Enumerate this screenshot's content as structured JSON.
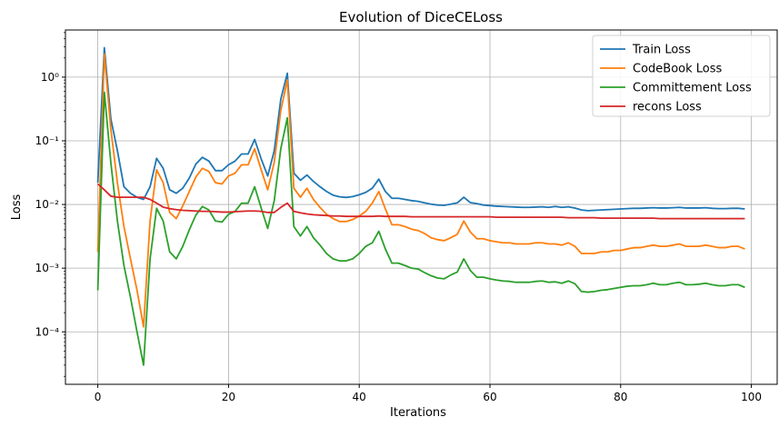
{
  "chart_data": {
    "type": "line",
    "title": "Evolution of DiceCELoss",
    "xlabel": "Iterations",
    "ylabel": "Loss",
    "yscale": "log",
    "xlim": [
      -4.95,
      103.95
    ],
    "ylim": [
      1.5e-05,
      5.5
    ],
    "x_ticks": [
      0,
      20,
      40,
      60,
      80,
      100
    ],
    "x_tick_labels": [
      "0",
      "20",
      "40",
      "60",
      "80",
      "100"
    ],
    "y_ticks": [
      0.0001,
      0.001,
      0.01,
      0.1,
      1
    ],
    "y_tick_labels": [
      "10⁻⁴",
      "10⁻³",
      "10⁻²",
      "10⁻¹",
      "10⁰"
    ],
    "grid": true,
    "legend_position": "top-right",
    "x": [
      0,
      1,
      2,
      3,
      4,
      5,
      6,
      7,
      8,
      9,
      10,
      11,
      12,
      13,
      14,
      15,
      16,
      17,
      18,
      19,
      20,
      21,
      22,
      23,
      24,
      25,
      26,
      27,
      28,
      29,
      30,
      31,
      32,
      33,
      34,
      35,
      36,
      37,
      38,
      39,
      40,
      41,
      42,
      43,
      44,
      45,
      46,
      47,
      48,
      49,
      50,
      51,
      52,
      53,
      54,
      55,
      56,
      57,
      58,
      59,
      60,
      61,
      62,
      63,
      64,
      65,
      66,
      67,
      68,
      69,
      70,
      71,
      72,
      73,
      74,
      75,
      76,
      77,
      78,
      79,
      80,
      81,
      82,
      83,
      84,
      85,
      86,
      87,
      88,
      89,
      90,
      91,
      92,
      93,
      94,
      95,
      96,
      97,
      98,
      99
    ],
    "series": [
      {
        "name": "Train Loss",
        "color": "#1f77b4",
        "values": [
          0.022,
          2.9,
          0.22,
          0.07,
          0.019,
          0.015,
          0.013,
          0.012,
          0.019,
          0.053,
          0.037,
          0.017,
          0.015,
          0.018,
          0.026,
          0.043,
          0.055,
          0.048,
          0.034,
          0.034,
          0.042,
          0.048,
          0.062,
          0.062,
          0.105,
          0.052,
          0.028,
          0.07,
          0.45,
          1.15,
          0.031,
          0.024,
          0.029,
          0.023,
          0.019,
          0.016,
          0.014,
          0.0132,
          0.0129,
          0.0133,
          0.0142,
          0.0155,
          0.018,
          0.025,
          0.016,
          0.0125,
          0.0125,
          0.012,
          0.0115,
          0.0112,
          0.0106,
          0.0101,
          0.0098,
          0.0097,
          0.0101,
          0.0106,
          0.013,
          0.0107,
          0.0103,
          0.0098,
          0.0096,
          0.0094,
          0.0093,
          0.0092,
          0.0091,
          0.009,
          0.009,
          0.0091,
          0.0092,
          0.009,
          0.0093,
          0.009,
          0.0092,
          0.0088,
          0.0082,
          0.008,
          0.0081,
          0.0082,
          0.0083,
          0.0084,
          0.0085,
          0.0086,
          0.0087,
          0.0087,
          0.0088,
          0.0089,
          0.0088,
          0.0088,
          0.0089,
          0.009,
          0.0088,
          0.0088,
          0.0088,
          0.0089,
          0.0087,
          0.0086,
          0.0086,
          0.0087,
          0.0087,
          0.0085
        ]
      },
      {
        "name": "CodeBook Loss",
        "color": "#ff7f0e",
        "values": [
          0.0018,
          2.3,
          0.15,
          0.022,
          0.0045,
          0.0014,
          0.00045,
          0.00012,
          0.0055,
          0.035,
          0.022,
          0.0075,
          0.006,
          0.0095,
          0.016,
          0.027,
          0.037,
          0.033,
          0.022,
          0.021,
          0.028,
          0.031,
          0.042,
          0.042,
          0.075,
          0.035,
          0.017,
          0.046,
          0.3,
          0.9,
          0.018,
          0.013,
          0.018,
          0.012,
          0.009,
          0.007,
          0.006,
          0.0054,
          0.0054,
          0.0058,
          0.0066,
          0.0078,
          0.0105,
          0.016,
          0.0085,
          0.0048,
          0.0048,
          0.0045,
          0.0041,
          0.0039,
          0.0035,
          0.003,
          0.0028,
          0.0027,
          0.003,
          0.0034,
          0.0055,
          0.0037,
          0.0029,
          0.0029,
          0.0027,
          0.0026,
          0.0025,
          0.0025,
          0.0024,
          0.0024,
          0.0024,
          0.0025,
          0.0025,
          0.0024,
          0.0024,
          0.0023,
          0.0025,
          0.0022,
          0.0017,
          0.0017,
          0.0017,
          0.0018,
          0.0018,
          0.0019,
          0.0019,
          0.002,
          0.0021,
          0.0021,
          0.0022,
          0.0023,
          0.0022,
          0.0022,
          0.0023,
          0.0024,
          0.0022,
          0.0022,
          0.0022,
          0.0023,
          0.0022,
          0.0021,
          0.0021,
          0.0022,
          0.0022,
          0.002
        ]
      },
      {
        "name": "Committement Loss",
        "color": "#2ca02c",
        "values": [
          0.00045,
          0.58,
          0.045,
          0.0055,
          0.0011,
          0.00035,
          0.0001,
          3e-05,
          0.0014,
          0.0087,
          0.0055,
          0.0018,
          0.0014,
          0.0022,
          0.004,
          0.0068,
          0.0093,
          0.0082,
          0.0055,
          0.0053,
          0.007,
          0.0078,
          0.0105,
          0.0105,
          0.019,
          0.0088,
          0.0042,
          0.0115,
          0.075,
          0.23,
          0.0045,
          0.0032,
          0.0045,
          0.003,
          0.0023,
          0.0017,
          0.0014,
          0.0013,
          0.0013,
          0.0014,
          0.0017,
          0.0022,
          0.0025,
          0.0038,
          0.002,
          0.0012,
          0.0012,
          0.0011,
          0.001,
          0.00097,
          0.00085,
          0.00076,
          0.0007,
          0.00068,
          0.00078,
          0.00087,
          0.0014,
          0.00092,
          0.00072,
          0.00072,
          0.00068,
          0.00065,
          0.00063,
          0.00062,
          0.0006,
          0.0006,
          0.0006,
          0.00062,
          0.00063,
          0.0006,
          0.00061,
          0.00058,
          0.00063,
          0.00057,
          0.00043,
          0.00042,
          0.00043,
          0.00045,
          0.00046,
          0.00048,
          0.0005,
          0.00052,
          0.00053,
          0.00053,
          0.00055,
          0.00058,
          0.00055,
          0.00055,
          0.00058,
          0.0006,
          0.00055,
          0.00055,
          0.00056,
          0.00058,
          0.00055,
          0.00053,
          0.00053,
          0.00055,
          0.00055,
          0.0005
        ]
      },
      {
        "name": "recons Loss",
        "color": "#d62728",
        "values": [
          0.021,
          0.017,
          0.0135,
          0.013,
          0.013,
          0.013,
          0.013,
          0.013,
          0.012,
          0.0105,
          0.0091,
          0.0086,
          0.0083,
          0.0081,
          0.008,
          0.0079,
          0.0078,
          0.0078,
          0.0077,
          0.0076,
          0.0076,
          0.0077,
          0.0078,
          0.0079,
          0.0079,
          0.0078,
          0.0075,
          0.0075,
          0.009,
          0.0105,
          0.0078,
          0.0074,
          0.0071,
          0.0069,
          0.0068,
          0.0067,
          0.0066,
          0.0066,
          0.0065,
          0.0065,
          0.0065,
          0.0065,
          0.0065,
          0.0066,
          0.0065,
          0.0065,
          0.0065,
          0.0065,
          0.0064,
          0.0064,
          0.0064,
          0.0064,
          0.0064,
          0.0064,
          0.0064,
          0.0064,
          0.0064,
          0.0064,
          0.0064,
          0.0064,
          0.0064,
          0.0063,
          0.0063,
          0.0063,
          0.0063,
          0.0063,
          0.0063,
          0.0063,
          0.0063,
          0.0063,
          0.0063,
          0.0063,
          0.0062,
          0.0062,
          0.0062,
          0.0062,
          0.0062,
          0.0061,
          0.0061,
          0.0061,
          0.0061,
          0.0061,
          0.0061,
          0.0061,
          0.0061,
          0.0061,
          0.006,
          0.006,
          0.006,
          0.006,
          0.006,
          0.006,
          0.006,
          0.006,
          0.006,
          0.006,
          0.006,
          0.006,
          0.006,
          0.006
        ]
      }
    ]
  }
}
